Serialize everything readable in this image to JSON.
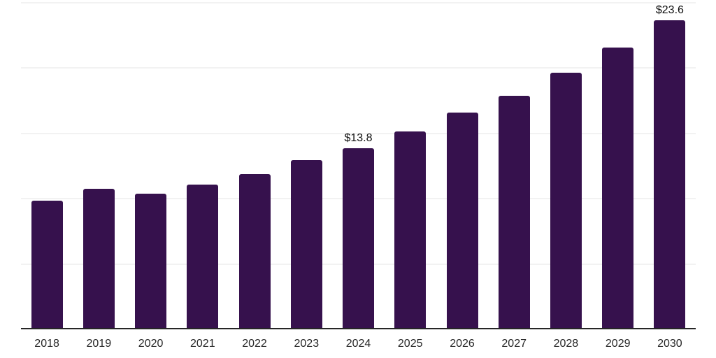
{
  "chart_data": {
    "type": "bar",
    "title": "",
    "xlabel": "",
    "ylabel": "",
    "categories": [
      "2018",
      "2019",
      "2020",
      "2021",
      "2022",
      "2023",
      "2024",
      "2025",
      "2026",
      "2027",
      "2028",
      "2029",
      "2030"
    ],
    "values": [
      9.8,
      10.7,
      10.3,
      11.0,
      11.8,
      12.9,
      13.8,
      15.1,
      16.5,
      17.8,
      19.6,
      21.5,
      23.6
    ],
    "data_labels": [
      "",
      "",
      "",
      "",
      "",
      "",
      "$13.8",
      "",
      "",
      "",
      "",
      "",
      "$23.6"
    ],
    "ylim": [
      0,
      25
    ],
    "grid": true,
    "grid_step": 5,
    "legend": "none",
    "colors": {
      "bar": "#36114d",
      "axis_line": "#262626",
      "gridline": "#f2f2f2",
      "data_label": "#0d0d0d",
      "tick_label": "#262626",
      "background": "#ffffff"
    }
  }
}
